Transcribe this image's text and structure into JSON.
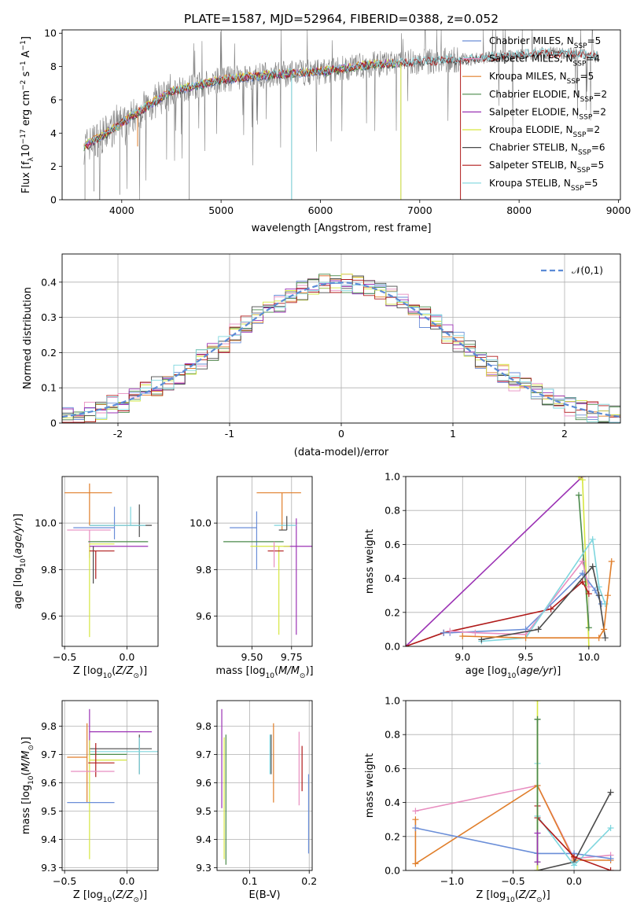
{
  "title": "PLATE=1587, MJD=52964, FIBERID=0388, z=0.052",
  "colors": {
    "Chabrier MILES": "#6a8ed8",
    "Salpeter MILES": "#e88ec0",
    "Kroupa MILES": "#e07e2a",
    "Chabrier ELODIE": "#4a8a4a",
    "Salpeter ELODIE": "#9b32b4",
    "Kroupa ELODIE": "#d6e640",
    "Chabrier STELIB": "#4a4a4a",
    "Salpeter STELIB": "#b01a1a",
    "Kroupa STELIB": "#7ed6de",
    "gray_data": "#808080",
    "normal": "#5b8bd6"
  },
  "chart_data": [
    {
      "id": "spectrum",
      "type": "line",
      "xlabel": "wavelength [Angstrom, rest frame]",
      "ylabel": "Flux [fλ10⁻¹⁷ erg cm⁻² s⁻¹ A⁻¹]",
      "xlim": [
        3400,
        9020
      ],
      "ylim": [
        0,
        10.2
      ],
      "xticks": [
        4000,
        5000,
        6000,
        7000,
        8000,
        9000
      ],
      "yticks": [
        0,
        2,
        4,
        6,
        8,
        10
      ],
      "grid": false,
      "legend_position": "top-right",
      "legend": [
        {
          "model": "Chabrier MILES",
          "label": "Chabrier MILES, N_SSP=5"
        },
        {
          "model": "Salpeter MILES",
          "label": "Salpeter MILES, N_SSP=4"
        },
        {
          "model": "Kroupa MILES",
          "label": "Kroupa MILES, N_SSP=5"
        },
        {
          "model": "Chabrier ELODIE",
          "label": "Chabrier ELODIE, N_SSP=2"
        },
        {
          "model": "Salpeter ELODIE",
          "label": "Salpeter ELODIE, N_SSP=2"
        },
        {
          "model": "Kroupa ELODIE",
          "label": "Kroupa ELODIE, N_SSP=2"
        },
        {
          "model": "Chabrier STELIB",
          "label": "Chabrier STELIB, N_SSP=6"
        },
        {
          "model": "Salpeter STELIB",
          "label": "Salpeter STELIB, N_SSP=5"
        },
        {
          "model": "Kroupa STELIB",
          "label": "Kroupa STELIB, N_SSP=5"
        }
      ],
      "data_envelope": {
        "x": [
          3620,
          3800,
          4000,
          4200,
          4500,
          5000,
          5500,
          6000,
          6500,
          7000,
          7400,
          7600,
          7800,
          8000,
          8200,
          8400,
          8600,
          8800
        ],
        "y": [
          3.2,
          3.8,
          4.6,
          5.4,
          6.5,
          7.2,
          7.5,
          7.7,
          8.1,
          8.3,
          8.4,
          8.5,
          8.6,
          8.7,
          8.8,
          8.8,
          8.7,
          8.6
        ]
      },
      "model_range": {
        "start": 3620,
        "end_miles_elodie": 6800,
        "end_stelib": 8800
      }
    },
    {
      "id": "residuals",
      "type": "histogram",
      "xlabel": "(data-model)/error",
      "ylabel": "Normed distribution",
      "xlim": [
        -2.5,
        2.5
      ],
      "ylim": [
        0,
        0.48
      ],
      "xticks": [
        -2,
        -1,
        0,
        1,
        2
      ],
      "yticks": [
        0.0,
        0.1,
        0.2,
        0.3,
        0.4
      ],
      "grid": true,
      "legend_position": "top-right",
      "legend_label": "𝒩(0,1)",
      "bins": {
        "start": -2.5,
        "width": 0.1,
        "count": 50
      }
    },
    {
      "id": "age_vs_Z",
      "type": "errorbar",
      "xlabel": "Z [log10(Z/Z⊙)]",
      "ylabel": "age  [log10(age/yr)]",
      "xlim": [
        -0.52,
        0.25
      ],
      "ylim": [
        9.47,
        10.2
      ],
      "xticks": [
        -0.5,
        0.0
      ],
      "xticklabels": [
        "−0.5",
        "0.0"
      ],
      "yticks": [
        9.6,
        9.8,
        10.0
      ],
      "yticklabels": [
        "9.6",
        "9.8",
        "10.0"
      ],
      "grid": true,
      "points": [
        {
          "model": "Kroupa MILES",
          "x": -0.3,
          "xerr": [
            0.2,
            0.18
          ],
          "y": 10.13,
          "yerr": [
            0.14,
            0.04
          ]
        },
        {
          "model": "Chabrier MILES",
          "x": -0.1,
          "xerr": [
            0.33,
            0.0
          ],
          "y": 9.98,
          "yerr": [
            0.05,
            0.09
          ]
        },
        {
          "model": "Salpeter MILES",
          "x": -0.3,
          "xerr": [
            0.18,
            0.17
          ],
          "y": 9.97,
          "yerr": [
            0.12,
            0.0
          ]
        },
        {
          "model": "Chabrier STELIB",
          "x": 0.1,
          "xerr": [
            0.4,
            0.1
          ],
          "y": 9.99,
          "yerr": [
            0.05,
            0.09
          ]
        },
        {
          "model": "Kroupa STELIB",
          "x": 0.03,
          "xerr": [
            0.33,
            0.12
          ],
          "y": 9.99,
          "yerr": [
            0.0,
            0.08
          ]
        },
        {
          "model": "Chabrier ELODIE",
          "x": -0.03,
          "xerr": [
            0.28,
            0.2
          ],
          "y": 9.92,
          "yerr": [
            0.0,
            0.0
          ]
        },
        {
          "model": "Kroupa ELODIE",
          "x": -0.3,
          "xerr": [
            0.0,
            0.2
          ],
          "y": 9.91,
          "yerr": [
            0.4,
            0.0
          ]
        },
        {
          "model": "Salpeter ELODIE",
          "x": -0.03,
          "xerr": [
            0.27,
            0.2
          ],
          "y": 9.9,
          "yerr": [
            0.0,
            0.0
          ]
        },
        {
          "model": "Chabrier STELIB",
          "x": -0.27,
          "xerr": [
            0.0,
            0.0
          ],
          "y": 9.85,
          "yerr": [
            0.11,
            0.05
          ]
        },
        {
          "model": "Salpeter STELIB",
          "x": -0.25,
          "xerr": [
            0.05,
            0.15
          ],
          "y": 9.88,
          "yerr": [
            0.12,
            0.0
          ]
        }
      ]
    },
    {
      "id": "age_vs_mass",
      "type": "errorbar",
      "xlabel": "mass [log10(M/M⊙)]",
      "ylabel": "",
      "xlim": [
        9.28,
        9.88
      ],
      "ylim": [
        9.47,
        10.2
      ],
      "xticks": [
        9.5,
        9.75
      ],
      "xticklabels": [
        "9.50",
        "9.75"
      ],
      "yticks": [
        9.6,
        9.8,
        10.0
      ],
      "yticklabels": [
        "9.6",
        "9.8",
        "10.0"
      ],
      "grid": true,
      "points": [
        {
          "model": "Kroupa MILES",
          "x": 9.69,
          "xerr": [
            0.16,
            0.12
          ],
          "y": 10.13,
          "yerr": [
            0.16,
            0.0
          ]
        },
        {
          "model": "Chabrier MILES",
          "x": 9.53,
          "xerr": [
            0.17,
            0.0
          ],
          "y": 9.98,
          "yerr": [
            0.18,
            0.07
          ]
        },
        {
          "model": "Salpeter ELODIE",
          "x": 9.78,
          "xerr": [
            0.08,
            0.1
          ],
          "y": 9.9,
          "yerr": [
            0.38,
            0.12
          ]
        },
        {
          "model": "Kroupa STELIB",
          "x": 9.72,
          "xerr": [
            0.08,
            0.06
          ],
          "y": 9.99,
          "yerr": [
            0.0,
            0.0
          ]
        },
        {
          "model": "Chabrier STELIB",
          "x": 9.72,
          "xerr": [
            0.05,
            0.0
          ],
          "y": 9.97,
          "yerr": [
            0.0,
            0.06
          ]
        },
        {
          "model": "Chabrier ELODIE",
          "x": 9.63,
          "xerr": [
            0.31,
            0.07
          ],
          "y": 9.92,
          "yerr": [
            0.0,
            0.0
          ]
        },
        {
          "model": "Kroupa ELODIE",
          "x": 9.67,
          "xerr": [
            0.18,
            0.07
          ],
          "y": 9.9,
          "yerr": [
            0.38,
            0.0
          ]
        },
        {
          "model": "Salpeter STELIB",
          "x": 9.67,
          "xerr": [
            0.07,
            0.03
          ],
          "y": 9.88,
          "yerr": [
            0.0,
            0.0
          ]
        },
        {
          "model": "Salpeter MILES",
          "x": 9.64,
          "xerr": [
            0.0,
            0.0
          ],
          "y": 9.83,
          "yerr": [
            0.02,
            0.09
          ]
        }
      ]
    },
    {
      "id": "weights_vs_age",
      "type": "line",
      "xlabel": "age  [log10(age/yr)]",
      "ylabel": "mass weight",
      "xlim": [
        8.55,
        10.25
      ],
      "ylim": [
        0,
        1.0
      ],
      "xticks": [
        9.0,
        9.5,
        10.0
      ],
      "xticklabels": [
        "9.0",
        "9.5",
        "10.0"
      ],
      "yticks": [
        0.0,
        0.2,
        0.4,
        0.6,
        0.8,
        1.0
      ],
      "yticklabels": [
        "0.0",
        "0.2",
        "0.4",
        "0.6",
        "0.8",
        "1.0"
      ],
      "grid": true,
      "series": [
        {
          "model": "Salpeter ELODIE",
          "x": [
            8.55,
            9.95
          ],
          "y": [
            0.0,
            1.0
          ]
        },
        {
          "model": "Kroupa ELODIE",
          "x": [
            9.92,
            9.95,
            10.0
          ],
          "y": [
            1.0,
            0.98,
            0.0
          ]
        },
        {
          "model": "Chabrier ELODIE",
          "x": [
            9.92,
            10.0
          ],
          "y": [
            0.89,
            0.11
          ]
        },
        {
          "model": "Salpeter STELIB",
          "x": [
            8.55,
            8.85,
            9.7,
            9.95,
            10.0
          ],
          "y": [
            0.0,
            0.08,
            0.22,
            0.38,
            0.31
          ]
        },
        {
          "model": "Chabrier MILES",
          "x": [
            8.85,
            8.9,
            9.5,
            9.95,
            10.05,
            10.1
          ],
          "y": [
            0.08,
            0.08,
            0.1,
            0.43,
            0.33,
            0.25
          ]
        },
        {
          "model": "Salpeter MILES",
          "x": [
            8.9,
            9.1,
            9.5,
            9.95,
            10.0
          ],
          "y": [
            0.09,
            0.08,
            0.07,
            0.5,
            0.35
          ]
        },
        {
          "model": "Kroupa STELIB",
          "x": [
            9.15,
            9.5,
            10.03,
            10.08,
            10.13
          ],
          "y": [
            0.03,
            0.05,
            0.63,
            0.35,
            0.25
          ]
        },
        {
          "model": "Chabrier STELIB",
          "x": [
            9.15,
            9.6,
            10.03,
            10.08,
            10.13
          ],
          "y": [
            0.04,
            0.1,
            0.47,
            0.3,
            0.05
          ]
        },
        {
          "model": "Kroupa MILES",
          "x": [
            9.0,
            9.5,
            10.08,
            10.12,
            10.15,
            10.18
          ],
          "y": [
            0.06,
            0.05,
            0.05,
            0.1,
            0.3,
            0.5
          ]
        }
      ]
    },
    {
      "id": "mass_vs_Z",
      "type": "errorbar",
      "xlabel": "Z [log10(Z/Z⊙)]",
      "ylabel": "mass [log10(M/M⊙)]",
      "xlim": [
        -0.52,
        0.25
      ],
      "ylim": [
        9.29,
        9.89
      ],
      "xticks": [
        -0.5,
        0.0
      ],
      "xticklabels": [
        "−0.5",
        "0.0"
      ],
      "yticks": [
        9.3,
        9.4,
        9.5,
        9.6,
        9.7,
        9.8
      ],
      "yticklabels": [
        "9.3",
        "9.4",
        "9.5",
        "9.6",
        "9.7",
        "9.8"
      ],
      "grid": true,
      "points": [
        {
          "model": "Salpeter ELODIE",
          "x": -0.3,
          "xerr": [
            0.0,
            0.5
          ],
          "y": 9.78,
          "yerr": [
            0.08,
            0.08
          ]
        },
        {
          "model": "Chabrier STELIB",
          "x": 0.1,
          "xerr": [
            0.4,
            0.1
          ],
          "y": 9.72,
          "yerr": [
            0.09,
            0.05
          ]
        },
        {
          "model": "Kroupa STELIB",
          "x": 0.1,
          "xerr": [
            0.4,
            0.15
          ],
          "y": 9.71,
          "yerr": [
            0.08,
            0.05
          ]
        },
        {
          "model": "Chabrier ELODIE",
          "x": 0.0,
          "xerr": [
            0.3,
            0.0
          ],
          "y": 9.7,
          "yerr": [
            0.0,
            0.0
          ]
        },
        {
          "model": "Kroupa MILES",
          "x": -0.32,
          "xerr": [
            0.16,
            0.0
          ],
          "y": 9.69,
          "yerr": [
            0.16,
            0.12
          ]
        },
        {
          "model": "Kroupa ELODIE",
          "x": -0.3,
          "xerr": [
            0.0,
            0.3
          ],
          "y": 9.68,
          "yerr": [
            0.35,
            0.07
          ]
        },
        {
          "model": "Salpeter STELIB",
          "x": -0.25,
          "xerr": [
            0.06,
            0.15
          ],
          "y": 9.67,
          "yerr": [
            0.05,
            0.07
          ]
        },
        {
          "model": "Salpeter MILES",
          "x": -0.1,
          "xerr": [
            0.35,
            0.0
          ],
          "y": 9.64,
          "yerr": [
            0.0,
            0.0
          ]
        },
        {
          "model": "Chabrier MILES",
          "x": -0.3,
          "xerr": [
            0.18,
            0.2
          ],
          "y": 9.53,
          "yerr": [
            0.0,
            0.0
          ]
        }
      ]
    },
    {
      "id": "mass_vs_ebv",
      "type": "errorbar",
      "xlabel": "E(B-V)",
      "ylabel": "",
      "xlim": [
        0.045,
        0.205
      ],
      "ylim": [
        9.29,
        9.89
      ],
      "xticks": [
        0.1,
        0.2
      ],
      "xticklabels": [
        "0.1",
        "0.2"
      ],
      "yticks": [
        9.3,
        9.4,
        9.5,
        9.6,
        9.7,
        9.8
      ],
      "yticklabels": [
        "9.3",
        "9.4",
        "9.5",
        "9.6",
        "9.7",
        "9.8"
      ],
      "grid": true,
      "points": [
        {
          "model": "Salpeter ELODIE",
          "x": 0.053,
          "y": 9.69,
          "yerr": [
            0.18,
            0.17
          ]
        },
        {
          "model": "Kroupa ELODIE",
          "x": 0.057,
          "y": 9.65,
          "yerr": [
            0.32,
            0.11
          ]
        },
        {
          "model": "Chabrier ELODIE",
          "x": 0.06,
          "y": 9.63,
          "yerr": [
            0.32,
            0.14
          ]
        },
        {
          "model": "Chabrier STELIB",
          "x": 0.136,
          "y": 9.7,
          "yerr": [
            0.07,
            0.07
          ]
        },
        {
          "model": "Kroupa STELIB",
          "x": 0.134,
          "y": 9.7,
          "yerr": [
            0.07,
            0.07
          ]
        },
        {
          "model": "Kroupa MILES",
          "x": 0.14,
          "y": 9.67,
          "yerr": [
            0.14,
            0.14
          ]
        },
        {
          "model": "Salpeter MILES",
          "x": 0.183,
          "y": 9.65,
          "yerr": [
            0.13,
            0.13
          ]
        },
        {
          "model": "Salpeter STELIB",
          "x": 0.188,
          "y": 9.65,
          "yerr": [
            0.08,
            0.08
          ]
        },
        {
          "model": "Chabrier MILES",
          "x": 0.199,
          "y": 9.49,
          "yerr": [
            0.14,
            0.14
          ]
        }
      ]
    },
    {
      "id": "weights_vs_Z",
      "type": "line",
      "xlabel": "Z [log10(Z/Z⊙)]",
      "ylabel": "mass weight",
      "xlim": [
        -1.38,
        0.38
      ],
      "ylim": [
        0,
        1.0
      ],
      "xticks": [
        -1.0,
        -0.5,
        0.0
      ],
      "xticklabels": [
        "−1.0",
        "−0.5",
        "0.0"
      ],
      "yticks": [
        0.0,
        0.2,
        0.4,
        0.6,
        0.8,
        1.0
      ],
      "yticklabels": [
        "0.0",
        "0.2",
        "0.4",
        "0.6",
        "0.8",
        "1.0"
      ],
      "grid": true,
      "series": [
        {
          "model": "Salpeter MILES",
          "x": [
            -1.3,
            -0.3,
            0.0,
            0.3
          ],
          "y": [
            0.35,
            0.5,
            0.07,
            0.09
          ]
        },
        {
          "model": "Kroupa MILES",
          "x": [
            -1.3,
            -1.3,
            -0.3,
            0.0,
            0.3
          ],
          "y": [
            0.3,
            0.04,
            0.5,
            0.06,
            0.06
          ]
        },
        {
          "model": "Chabrier MILES",
          "x": [
            -1.3,
            -0.3,
            0.0,
            0.3
          ],
          "y": [
            0.25,
            0.1,
            0.1,
            0.07
          ]
        },
        {
          "model": "Chabrier STELIB",
          "x": [
            -0.3,
            -0.3,
            0.0,
            0.3
          ],
          "y": [
            0.89,
            0.0,
            0.05,
            0.46
          ]
        },
        {
          "model": "Kroupa STELIB",
          "x": [
            -0.3,
            -0.3,
            0.0,
            0.3
          ],
          "y": [
            0.63,
            0.32,
            0.03,
            0.25
          ]
        },
        {
          "model": "Salpeter STELIB",
          "x": [
            -0.3,
            -0.3,
            0.0,
            0.3
          ],
          "y": [
            0.38,
            0.31,
            0.08,
            0.0
          ]
        },
        {
          "model": "Kroupa ELODIE",
          "x": [
            -0.3,
            -0.3
          ],
          "y": [
            1.0,
            0.0
          ]
        },
        {
          "model": "Chabrier ELODIE",
          "x": [
            -0.3,
            -0.3
          ],
          "y": [
            0.89,
            0.05
          ]
        },
        {
          "model": "Salpeter ELODIE",
          "x": [
            -0.3,
            -0.3
          ],
          "y": [
            0.22,
            0.05
          ]
        }
      ]
    }
  ]
}
